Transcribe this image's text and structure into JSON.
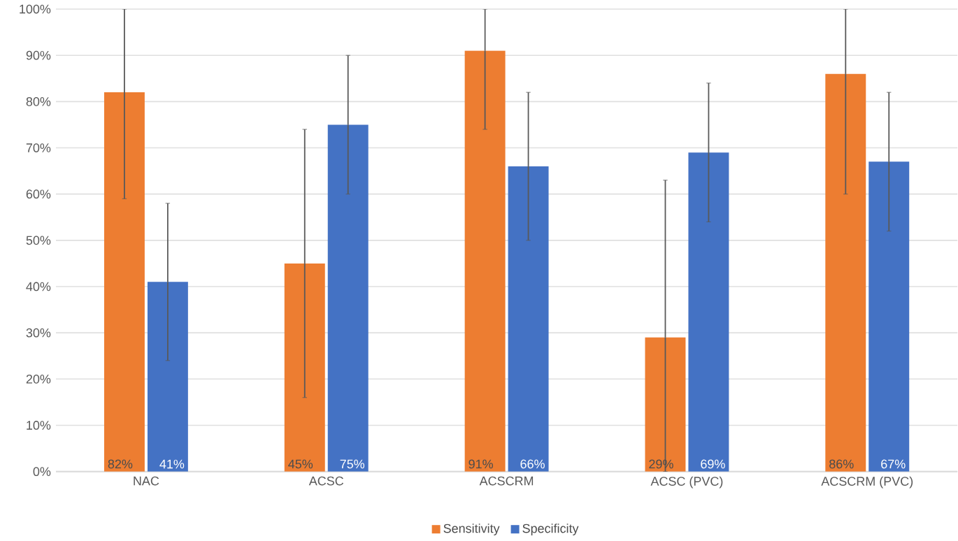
{
  "chart_data": {
    "type": "bar",
    "categories": [
      "NAC",
      "ACSC",
      "ACSCRM",
      "ACSC (PVC)",
      "ACSCRM (PVC)"
    ],
    "series": [
      {
        "name": "Sensitivity",
        "color": "#ed7d31",
        "values": [
          82,
          45,
          91,
          29,
          86
        ],
        "value_labels": [
          "82%",
          "45%",
          "91%",
          "29%",
          "86%"
        ],
        "errors": [
          [
            59,
            100
          ],
          [
            16,
            74
          ],
          [
            74,
            100
          ],
          [
            0,
            63
          ],
          [
            60,
            100
          ]
        ]
      },
      {
        "name": "Specificity",
        "color": "#4472c4",
        "values": [
          41,
          75,
          66,
          69,
          67
        ],
        "value_labels": [
          "41%",
          "75%",
          "66%",
          "69%",
          "67%"
        ],
        "errors": [
          [
            24,
            58
          ],
          [
            60,
            90
          ],
          [
            50,
            82
          ],
          [
            54,
            84
          ],
          [
            52,
            82
          ]
        ]
      }
    ],
    "ylim": [
      0,
      100
    ],
    "yticks": [
      {
        "value": 0,
        "label": "0%"
      },
      {
        "value": 10,
        "label": "10%"
      },
      {
        "value": 20,
        "label": "20%"
      },
      {
        "value": 30,
        "label": "30%"
      },
      {
        "value": 40,
        "label": "40%"
      },
      {
        "value": 50,
        "label": "50%"
      },
      {
        "value": 60,
        "label": "60%"
      },
      {
        "value": 70,
        "label": "70%"
      },
      {
        "value": 80,
        "label": "80%"
      },
      {
        "value": 90,
        "label": "90%"
      },
      {
        "value": 100,
        "label": "100%"
      }
    ],
    "grid": "y",
    "legend": "bottom"
  }
}
